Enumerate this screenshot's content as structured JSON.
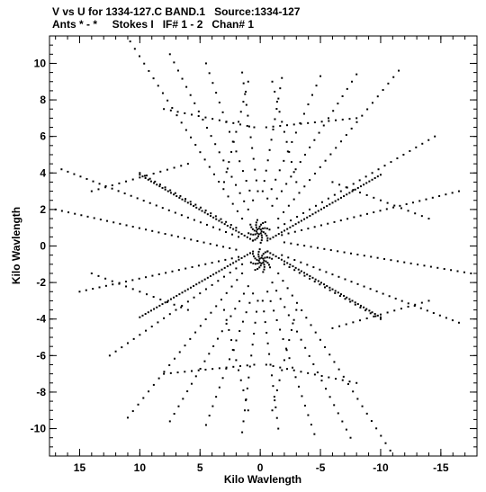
{
  "chart_data": {
    "type": "scatter",
    "title": "V vs U for 1334-127.C BAND.1   Source:1334-127",
    "subtitle": "Ants * - *     Stokes I   IF# 1 - 2   Chan# 1",
    "xlabel": "Kilo Wavlength",
    "ylabel": "Kilo Wavlength",
    "xlim": [
      17.5,
      -18.0
    ],
    "ylim": [
      -11.5,
      11.5
    ],
    "xticks": [
      15,
      10,
      5,
      0,
      -5,
      -10,
      -15
    ],
    "xtick_labels": [
      "15",
      "10",
      "5",
      "0",
      "-5",
      "-10",
      "-15"
    ],
    "yticks": [
      10,
      8,
      6,
      4,
      2,
      0,
      -2,
      -4,
      -6,
      -8,
      -10
    ],
    "ytick_labels": [
      "10",
      "8",
      "6",
      "4",
      "2",
      "0",
      "-2",
      "-4",
      "-6",
      "-8",
      "-10"
    ],
    "grid": false,
    "marker_color": "#000000",
    "tracks": [
      {
        "u_start": 1.5,
        "v_start": 1.5,
        "u_end": 10.8,
        "v_end": 11.2,
        "step": 0.55
      },
      {
        "u_start": 1.0,
        "v_start": 2.0,
        "u_end": 7.5,
        "v_end": 10.5,
        "step": 0.55
      },
      {
        "u_start": 0.6,
        "v_start": 2.5,
        "u_end": 4.5,
        "v_end": 10.0,
        "step": 0.6
      },
      {
        "u_start": 0.2,
        "v_start": 3.0,
        "u_end": 1.5,
        "v_end": 9.5,
        "step": 0.6
      },
      {
        "u_start": -0.2,
        "v_start": 3.0,
        "u_end": -1.8,
        "v_end": 9.2,
        "step": 0.6
      },
      {
        "u_start": -0.6,
        "v_start": 2.6,
        "u_end": -5.0,
        "v_end": 9.3,
        "step": 0.6
      },
      {
        "u_start": -1.0,
        "v_start": 2.2,
        "u_end": -8.0,
        "v_end": 9.4,
        "step": 0.55
      },
      {
        "u_start": -1.5,
        "v_start": 1.5,
        "u_end": -11.5,
        "v_end": 9.6,
        "step": 0.55
      },
      {
        "u_start": -1.5,
        "v_start": 1.0,
        "u_end": -14.5,
        "v_end": 6.0,
        "step": 0.55
      },
      {
        "u_start": -1.8,
        "v_start": 0.6,
        "u_end": -16.5,
        "v_end": 3.0,
        "step": 0.55
      },
      {
        "u_start": -2.0,
        "v_start": 0.2,
        "u_end": -17.5,
        "v_end": -1.5,
        "step": 0.55
      },
      {
        "u_start": 2.0,
        "v_start": -0.2,
        "u_end": 17.0,
        "v_end": 2.0,
        "step": 0.55
      },
      {
        "u_start": 1.8,
        "v_start": -0.6,
        "u_end": 15.0,
        "v_end": -2.5,
        "step": 0.55
      },
      {
        "u_start": 1.5,
        "v_start": -1.0,
        "u_end": 12.5,
        "v_end": -6.0,
        "step": 0.55
      },
      {
        "u_start": 1.5,
        "v_start": -1.5,
        "u_end": 11.0,
        "v_end": -9.4,
        "step": 0.55
      },
      {
        "u_start": 1.0,
        "v_start": -2.2,
        "u_end": 7.5,
        "v_end": -9.6,
        "step": 0.55
      },
      {
        "u_start": 0.6,
        "v_start": -2.6,
        "u_end": 4.5,
        "v_end": -9.8,
        "step": 0.6
      },
      {
        "u_start": 0.2,
        "v_start": -3.0,
        "u_end": 1.5,
        "v_end": -10.2,
        "step": 0.6
      },
      {
        "u_start": -0.2,
        "v_start": -3.0,
        "u_end": -1.5,
        "v_end": -10.0,
        "step": 0.6
      },
      {
        "u_start": -0.6,
        "v_start": -2.5,
        "u_end": -4.5,
        "v_end": -10.3,
        "step": 0.6
      },
      {
        "u_start": -1.0,
        "v_start": -2.0,
        "u_end": -7.5,
        "v_end": -10.5,
        "step": 0.55
      },
      {
        "u_start": -1.5,
        "v_start": -1.5,
        "u_end": -10.8,
        "v_end": -11.2,
        "step": 0.55
      },
      {
        "u_start": 2.0,
        "v_start": 1.0,
        "u_end": 10.0,
        "v_end": 4.0,
        "step": 0.45
      },
      {
        "u_start": 1.8,
        "v_start": 0.5,
        "u_end": 16.5,
        "v_end": 4.2,
        "step": 0.55
      },
      {
        "u_start": -2.0,
        "v_start": -1.0,
        "u_end": -10.0,
        "v_end": -4.0,
        "step": 0.45
      },
      {
        "u_start": -1.8,
        "v_start": -0.5,
        "u_end": -16.5,
        "v_end": -4.2,
        "step": 0.55
      },
      {
        "u_start": 0.6,
        "v_start": 0.3,
        "u_end": 10.0,
        "v_end": 3.9,
        "step": 0.25
      },
      {
        "u_start": -0.6,
        "v_start": -0.3,
        "u_end": -10.0,
        "v_end": -3.9,
        "step": 0.25
      },
      {
        "u_start": -0.6,
        "v_start": 0.3,
        "u_end": -10.0,
        "v_end": 3.9,
        "step": 0.25
      },
      {
        "u_start": 0.6,
        "v_start": -0.3,
        "u_end": 10.0,
        "v_end": -3.9,
        "step": 0.25
      },
      {
        "u_start": 3.0,
        "v_start": 3.5,
        "u_end": 1.0,
        "v_end": 9.0,
        "step": 0.6
      },
      {
        "u_start": -3.0,
        "v_start": 3.5,
        "u_end": -1.0,
        "v_end": 9.0,
        "step": 0.6
      },
      {
        "u_start": 3.0,
        "v_start": -3.5,
        "u_end": 1.0,
        "v_end": -9.0,
        "step": 0.6
      },
      {
        "u_start": -3.0,
        "v_start": -3.5,
        "u_end": -1.0,
        "v_end": -9.0,
        "step": 0.6
      },
      {
        "u_start": 8.0,
        "v_start": 7.5,
        "u_end": 0.5,
        "v_end": 6.5,
        "step": 0.6
      },
      {
        "u_start": -8.0,
        "v_start": 7.0,
        "u_end": -0.5,
        "v_end": 6.5,
        "step": 0.6
      },
      {
        "u_start": 8.0,
        "v_start": -7.0,
        "u_end": 0.5,
        "v_end": -6.5,
        "step": 0.6
      },
      {
        "u_start": -8.0,
        "v_start": -7.5,
        "u_end": -0.5,
        "v_end": -6.5,
        "step": 0.6
      },
      {
        "u_start": 14.0,
        "v_start": 3.0,
        "u_end": 6.0,
        "v_end": 4.5,
        "step": 0.6
      },
      {
        "u_start": -14.0,
        "v_start": -3.0,
        "u_end": -6.0,
        "v_end": -4.5,
        "step": 0.6
      },
      {
        "u_start": 14.0,
        "v_start": -1.5,
        "u_end": 6.0,
        "v_end": -3.5,
        "step": 0.6
      },
      {
        "u_start": -14.0,
        "v_start": 1.5,
        "u_end": -6.0,
        "v_end": 3.5,
        "step": 0.6
      }
    ],
    "dense_clusters": [
      {
        "u": 0.1,
        "v": 0.8
      },
      {
        "u": -0.1,
        "v": -0.8
      }
    ]
  }
}
